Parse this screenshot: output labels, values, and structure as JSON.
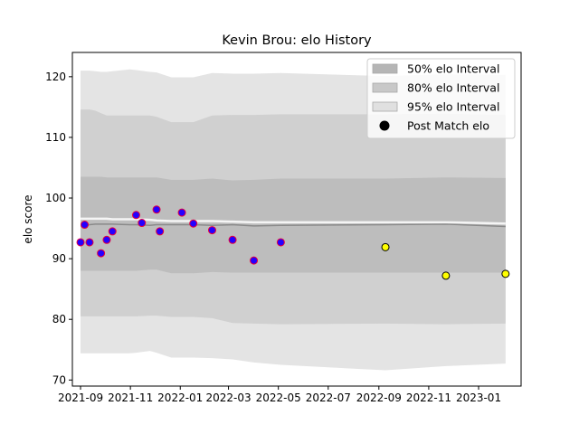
{
  "chart_data": {
    "type": "area",
    "title": "Kevin Brou: elo History",
    "xlabel": "",
    "ylabel": "elo score",
    "ylim": [
      69,
      124
    ],
    "xlim": [
      "2021-08-22",
      "2023-02-22"
    ],
    "x_ticks": [
      "2021-09",
      "2021-11",
      "2022-01",
      "2022-03",
      "2022-05",
      "2022-07",
      "2022-09",
      "2022-11",
      "2023-01"
    ],
    "y_ticks": [
      70,
      80,
      90,
      100,
      110,
      120
    ],
    "grid": false,
    "legend_position": "top-right",
    "x": [
      "2021-09-01",
      "2021-09-06",
      "2021-09-12",
      "2021-09-19",
      "2021-09-26",
      "2021-10-03",
      "2021-10-10",
      "2021-10-31",
      "2021-11-08",
      "2021-11-25",
      "2021-12-03",
      "2021-12-21",
      "2022-01-03",
      "2022-01-17",
      "2022-02-09",
      "2022-03-06",
      "2022-04-01",
      "2022-05-04",
      "2022-09-09",
      "2022-11-22",
      "2023-02-03"
    ],
    "series": [
      {
        "name": "95% elo Interval",
        "color": "#e4e4e4",
        "lower": [
          74.4,
          74.4,
          74.4,
          74.4,
          74.4,
          74.4,
          74.4,
          74.4,
          74.5,
          74.8,
          74.5,
          73.7,
          73.7,
          73.7,
          73.6,
          73.4,
          72.9,
          72.5,
          71.6,
          72.3,
          72.7
        ],
        "upper": [
          121.0,
          121.0,
          121.0,
          120.9,
          120.8,
          120.8,
          120.9,
          121.2,
          121.1,
          120.8,
          120.7,
          119.9,
          119.9,
          119.9,
          120.6,
          120.5,
          120.5,
          120.6,
          120.1,
          120.4,
          120.3
        ]
      },
      {
        "name": "80% elo Interval",
        "color": "#d0d0d0",
        "lower": [
          80.5,
          80.5,
          80.5,
          80.5,
          80.5,
          80.5,
          80.5,
          80.5,
          80.5,
          80.6,
          80.6,
          80.4,
          80.4,
          80.4,
          80.2,
          79.4,
          79.3,
          79.2,
          79.3,
          79.2,
          79.3
        ],
        "upper": [
          114.6,
          114.6,
          114.6,
          114.4,
          114.0,
          113.6,
          113.6,
          113.6,
          113.6,
          113.6,
          113.4,
          112.5,
          112.5,
          112.5,
          113.6,
          113.7,
          113.7,
          113.8,
          113.8,
          113.9,
          113.7
        ]
      },
      {
        "name": "50% elo Interval",
        "color": "#bdbdbd",
        "lower": [
          88.0,
          88.0,
          88.0,
          88.0,
          88.0,
          88.0,
          88.0,
          88.0,
          88.0,
          88.2,
          88.2,
          87.6,
          87.6,
          87.6,
          87.8,
          87.7,
          87.7,
          87.7,
          87.7,
          87.7,
          87.7
        ],
        "upper": [
          103.5,
          103.5,
          103.5,
          103.5,
          103.5,
          103.4,
          103.4,
          103.4,
          103.4,
          103.4,
          103.4,
          103.0,
          103.0,
          103.0,
          103.2,
          102.9,
          103.0,
          103.2,
          103.2,
          103.4,
          103.3
        ]
      }
    ],
    "mean_line": [
      96.6,
      96.6,
      96.6,
      96.6,
      96.6,
      96.6,
      96.5,
      96.5,
      96.5,
      96.4,
      96.3,
      96.2,
      96.2,
      96.2,
      96.2,
      96.1,
      96.0,
      96.0,
      96.0,
      96.0,
      95.8
    ],
    "mean_line_dark": [
      95.4,
      95.4,
      95.6,
      95.7,
      95.7,
      95.7,
      95.7,
      95.6,
      95.6,
      95.5,
      95.6,
      95.6,
      95.6,
      95.6,
      95.5,
      95.6,
      95.4,
      95.5,
      95.6,
      95.7,
      95.3
    ],
    "post_match_points": [
      {
        "x": "2021-09-01",
        "y": 92.7,
        "style": "blue"
      },
      {
        "x": "2021-09-06",
        "y": 95.6,
        "style": "blue"
      },
      {
        "x": "2021-09-12",
        "y": 92.7,
        "style": "blue"
      },
      {
        "x": "2021-09-26",
        "y": 90.9,
        "style": "blue"
      },
      {
        "x": "2021-10-03",
        "y": 93.1,
        "style": "blue"
      },
      {
        "x": "2021-10-10",
        "y": 94.5,
        "style": "blue"
      },
      {
        "x": "2021-11-08",
        "y": 97.2,
        "style": "blue"
      },
      {
        "x": "2021-11-15",
        "y": 95.9,
        "style": "blue"
      },
      {
        "x": "2021-12-03",
        "y": 98.1,
        "style": "blue"
      },
      {
        "x": "2021-12-07",
        "y": 94.5,
        "style": "blue"
      },
      {
        "x": "2022-01-03",
        "y": 97.6,
        "style": "blue"
      },
      {
        "x": "2022-01-17",
        "y": 95.8,
        "style": "blue"
      },
      {
        "x": "2022-02-09",
        "y": 94.7,
        "style": "blue"
      },
      {
        "x": "2022-03-06",
        "y": 93.1,
        "style": "blue"
      },
      {
        "x": "2022-04-01",
        "y": 89.7,
        "style": "blue"
      },
      {
        "x": "2022-05-04",
        "y": 92.7,
        "style": "blue"
      },
      {
        "x": "2022-09-09",
        "y": 91.9,
        "style": "yellow"
      },
      {
        "x": "2022-11-22",
        "y": 87.2,
        "style": "yellow"
      },
      {
        "x": "2023-02-03",
        "y": 87.5,
        "style": "yellow"
      }
    ],
    "legend": [
      {
        "label": "50% elo Interval",
        "kind": "patch",
        "color": "#b5b5b5"
      },
      {
        "label": "80% elo Interval",
        "kind": "patch",
        "color": "#c8c8c8"
      },
      {
        "label": "95% elo Interval",
        "kind": "patch",
        "color": "#e0e0e0"
      },
      {
        "label": "Post Match elo",
        "kind": "marker",
        "color": "#000000"
      }
    ],
    "colors": {
      "point_blue_fill": "#2400ff",
      "point_blue_edge": "#e8003c",
      "point_yellow_fill": "#ffff00",
      "point_yellow_edge": "#000000",
      "mean_line": "#f5f5f5",
      "mean_line_dark": "#8a8a8a"
    }
  }
}
